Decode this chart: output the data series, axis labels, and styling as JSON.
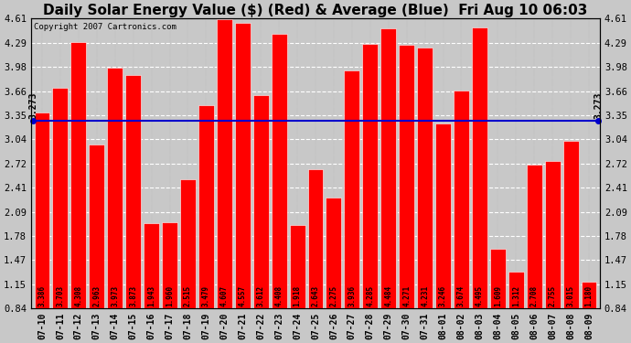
{
  "title": "Daily Solar Energy Value ($) (Red) & Average (Blue)  Fri Aug 10 06:03",
  "copyright": "Copyright 2007 Cartronics.com",
  "average": 3.273,
  "categories": [
    "07-10",
    "07-11",
    "07-12",
    "07-13",
    "07-14",
    "07-15",
    "07-16",
    "07-17",
    "07-18",
    "07-19",
    "07-20",
    "07-21",
    "07-22",
    "07-23",
    "07-24",
    "07-25",
    "07-26",
    "07-27",
    "07-28",
    "07-29",
    "07-30",
    "07-31",
    "08-01",
    "08-02",
    "08-03",
    "08-04",
    "08-05",
    "08-06",
    "08-07",
    "08-08",
    "08-09"
  ],
  "values": [
    3.386,
    3.703,
    4.308,
    2.963,
    3.973,
    3.873,
    1.943,
    1.96,
    2.515,
    3.479,
    4.607,
    4.557,
    3.612,
    4.408,
    1.918,
    2.643,
    2.275,
    3.936,
    4.285,
    4.484,
    4.271,
    4.231,
    3.246,
    3.674,
    4.495,
    1.609,
    1.312,
    2.708,
    2.755,
    3.015,
    1.18
  ],
  "bar_color": "#ff0000",
  "avg_line_color": "#0000cc",
  "fig_bg_color": "#c8c8c8",
  "plot_bg_color": "#c8c8c8",
  "ylim_min": 0.84,
  "ylim_max": 4.61,
  "yticks": [
    0.84,
    1.15,
    1.47,
    1.78,
    2.09,
    2.41,
    2.72,
    3.04,
    3.35,
    3.66,
    3.98,
    4.29,
    4.61
  ],
  "title_fontsize": 11,
  "bar_label_fontsize": 5.5,
  "avg_label": "3.273",
  "avg_label_fontsize": 7
}
